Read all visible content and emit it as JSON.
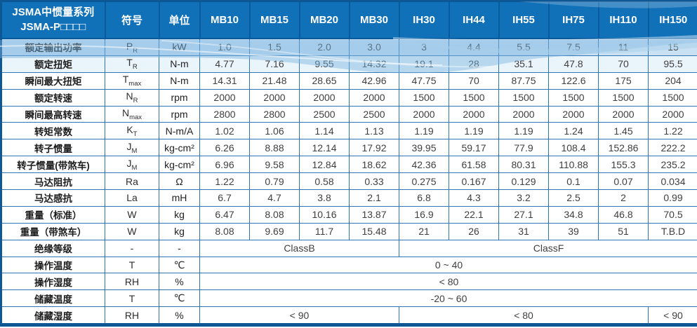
{
  "header": {
    "title_line1": "JSMA中惯量系列",
    "title_line2": "JSMA-P□□□□",
    "symbol_col": "符号",
    "unit_col": "单位",
    "models": [
      "MB10",
      "MB15",
      "MB20",
      "MB30",
      "IH30",
      "IH44",
      "IH55",
      "IH75",
      "IH110",
      "IH150"
    ]
  },
  "rows": [
    {
      "label": "额定输出功率",
      "sym": "P",
      "sub": "R",
      "unit": "kW",
      "values": [
        "1.0",
        "1.5",
        "2.0",
        "3.0",
        "3",
        "4.4",
        "5.5",
        "7.5",
        "11",
        "15"
      ]
    },
    {
      "label": "额定扭矩",
      "sym": "T",
      "sub": "R",
      "unit": "N-m",
      "values": [
        "4.77",
        "7.16",
        "9.55",
        "14.32",
        "19.1",
        "28",
        "35.1",
        "47.8",
        "70",
        "95.5"
      ]
    },
    {
      "label": "瞬间最大扭矩",
      "sym": "T",
      "sub": "max",
      "unit": "N-m",
      "values": [
        "14.31",
        "21.48",
        "28.65",
        "42.96",
        "47.75",
        "70",
        "87.75",
        "122.6",
        "175",
        "204"
      ]
    },
    {
      "label": "额定转速",
      "sym": "N",
      "sub": "R",
      "unit": "rpm",
      "values": [
        "2000",
        "2000",
        "2000",
        "2000",
        "1500",
        "1500",
        "1500",
        "1500",
        "1500",
        "1500"
      ]
    },
    {
      "label": "瞬间最高转速",
      "sym": "N",
      "sub": "max",
      "unit": "rpm",
      "values": [
        "2800",
        "2800",
        "2500",
        "2500",
        "2000",
        "2000",
        "2000",
        "2000",
        "2000",
        "2000"
      ]
    },
    {
      "label": "转矩常数",
      "sym": "K",
      "sub": "T",
      "unit": "N-m/A",
      "values": [
        "1.02",
        "1.06",
        "1.14",
        "1.13",
        "1.19",
        "1.19",
        "1.19",
        "1.24",
        "1.45",
        "1.22"
      ]
    },
    {
      "label": "转子惯量",
      "sym": "J",
      "sub": "M",
      "unit": "kg-cm²",
      "values": [
        "6.26",
        "8.88",
        "12.14",
        "17.92",
        "39.95",
        "59.17",
        "77.9",
        "108.4",
        "152.86",
        "222.2"
      ]
    },
    {
      "label": "转子惯量(带煞车)",
      "sym": "J",
      "sub": "M",
      "unit": "kg-cm²",
      "values": [
        "6.96",
        "9.58",
        "12.84",
        "18.62",
        "42.36",
        "61.58",
        "80.31",
        "110.88",
        "155.3",
        "235.2"
      ]
    },
    {
      "label": "马达阻抗",
      "sym": "Ra",
      "unit": "Ω",
      "values": [
        "1.22",
        "0.79",
        "0.58",
        "0.33",
        "0.275",
        "0.167",
        "0.129",
        "0.1",
        "0.07",
        "0.034"
      ]
    },
    {
      "label": "马达感抗",
      "sym": "La",
      "unit": "mH",
      "values": [
        "6.7",
        "4.7",
        "3.8",
        "2.1",
        "6.8",
        "4.3",
        "3.2",
        "2.5",
        "2",
        "0.99"
      ]
    },
    {
      "label": "重量（标准）",
      "sym": "W",
      "unit": "kg",
      "values": [
        "6.47",
        "8.08",
        "10.16",
        "13.87",
        "16.9",
        "22.1",
        "27.1",
        "34.8",
        "46.8",
        "70.5"
      ]
    },
    {
      "label": "重量（带煞车）",
      "sym": "W",
      "unit": "kg",
      "values": [
        "8.08",
        "9.69",
        "11.7",
        "15.48",
        "21",
        "26",
        "31",
        "39",
        "51",
        "T.B.D"
      ]
    },
    {
      "label": "绝缘等级",
      "sym": "-",
      "unit": "-",
      "spans": [
        {
          "text": "ClassB",
          "cols": 4
        },
        {
          "text": "ClassF",
          "cols": 6
        }
      ]
    },
    {
      "label": "操作温度",
      "sym": "T",
      "unit": "℃",
      "spans": [
        {
          "text": "0 ~ 40",
          "cols": 10
        }
      ]
    },
    {
      "label": "操作湿度",
      "sym": "RH",
      "unit": "%",
      "spans": [
        {
          "text": "< 80",
          "cols": 10
        }
      ]
    },
    {
      "label": "储藏温度",
      "sym": "T",
      "unit": "℃",
      "spans": [
        {
          "text": "-20 ~ 60",
          "cols": 10
        }
      ]
    },
    {
      "label": "储藏湿度",
      "sym": "RH",
      "unit": "%",
      "spans": [
        {
          "text": "< 90",
          "cols": 4
        },
        {
          "text": "< 80",
          "cols": 5
        },
        {
          "text": "< 90",
          "cols": 1
        }
      ]
    }
  ],
  "colors": {
    "header_bg": "#1070b8",
    "header_line": "#0a5a9c",
    "grid_line": "#2f77b4",
    "frame": "#0d5794",
    "row_highlight": "#c9e1f2",
    "wave": "#7ab4e0",
    "label_text": "#1c1c1c",
    "value_text": "#3f3f3f"
  }
}
